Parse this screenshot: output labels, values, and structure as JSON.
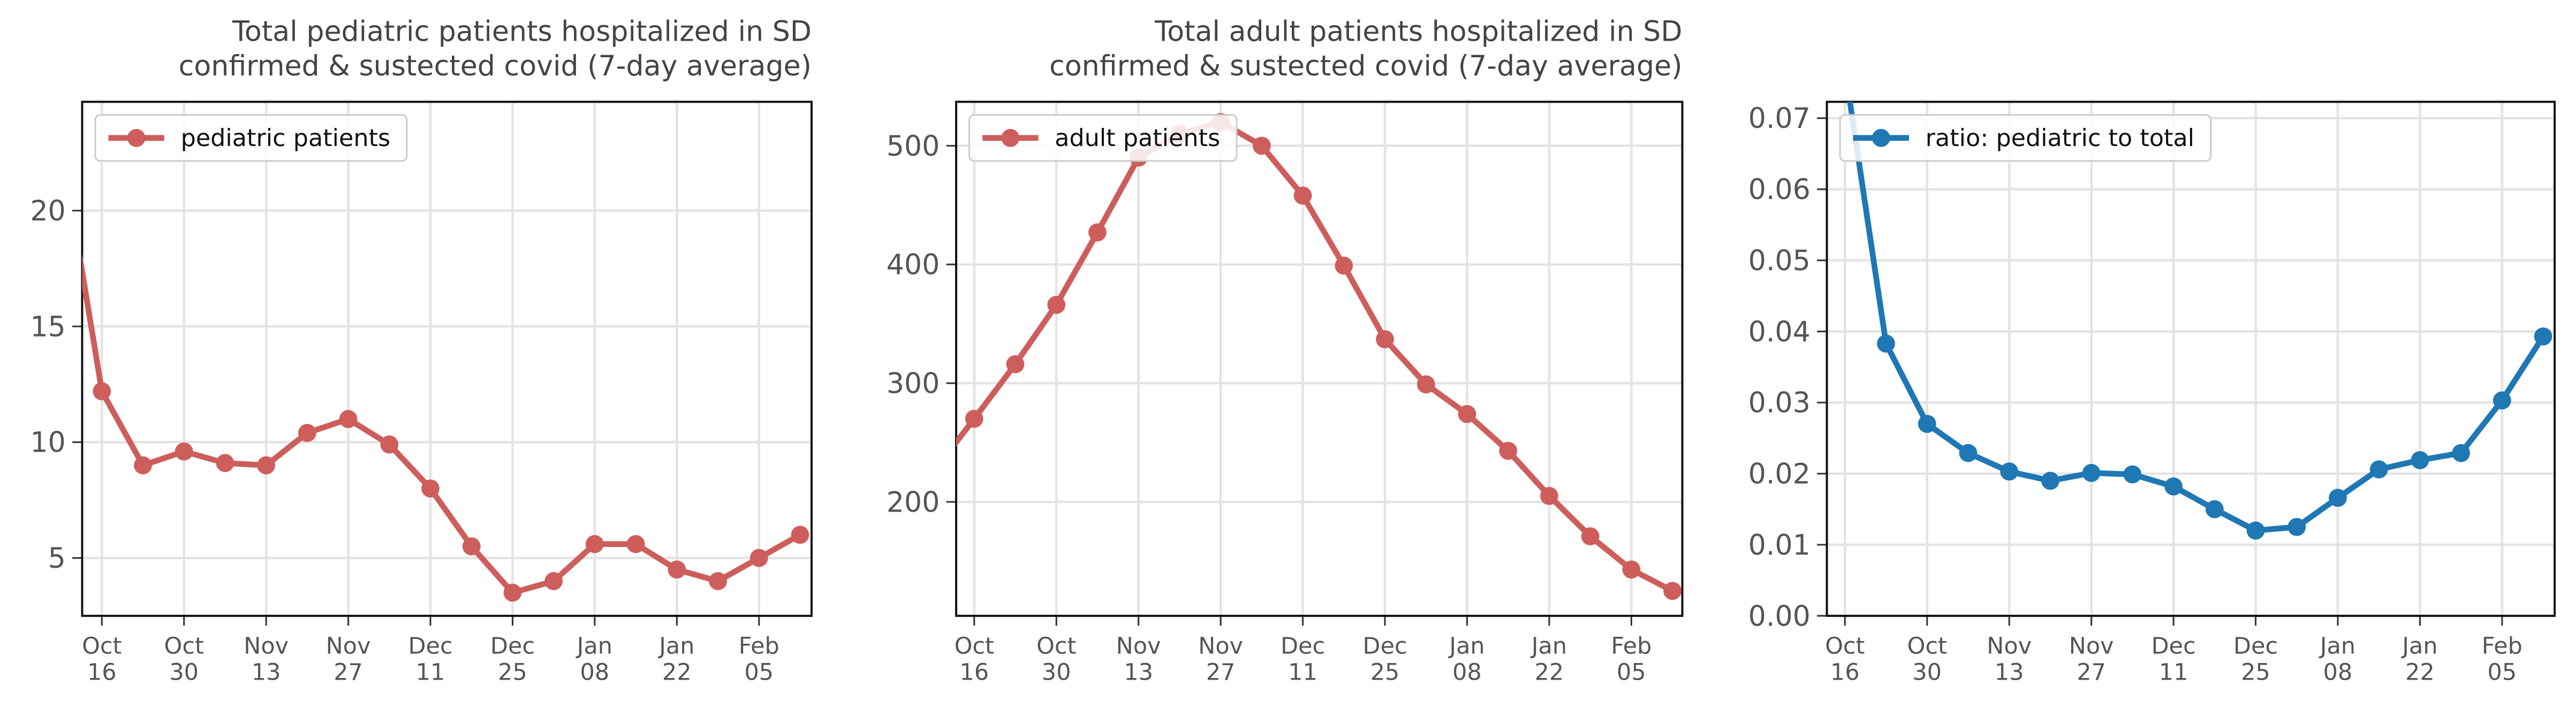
{
  "chart_data": [
    {
      "type": "line",
      "title": "Total pediatric patients hospitalized in SD\nconfirmed & sustected covid (7-day average)",
      "categories": [
        null,
        "Oct 16",
        null,
        "Oct 30",
        null,
        "Nov 13",
        null,
        "Nov 27",
        null,
        "Dec 11",
        null,
        "Dec 25",
        null,
        "Jan 08",
        null,
        "Jan 22",
        null,
        "Feb 05",
        null
      ],
      "series": [
        {
          "name": "pediatric patients",
          "color": "#cd5e5c",
          "values": [
            23,
            12.2,
            9.0,
            9.6,
            9.1,
            9.0,
            10.4,
            11.0,
            9.9,
            8.0,
            5.5,
            3.5,
            4.0,
            5.6,
            5.6,
            4.5,
            4.0,
            5.0,
            6.0
          ]
        }
      ],
      "xlim": [
        0.52,
        18.28
      ],
      "ylim": [
        2.5,
        24.7
      ],
      "yticks": [
        5,
        10,
        15,
        20
      ],
      "grid": true,
      "legend": "upper left"
    },
    {
      "type": "line",
      "title": "Total adult patients hospitalized in SD\nconfirmed & sustected covid (7-day average)",
      "categories": [
        null,
        "Oct 16",
        null,
        "Oct 30",
        null,
        "Nov 13",
        null,
        "Nov 27",
        null,
        "Dec 11",
        null,
        "Dec 25",
        null,
        "Jan 08",
        null,
        "Jan 22",
        null,
        "Feb 05",
        null
      ],
      "series": [
        {
          "name": "adult patients",
          "color": "#cd5e5c",
          "values": [
            225,
            270,
            316,
            366,
            427,
            490,
            510,
            520,
            500,
            458,
            399,
            337,
            299,
            274,
            243,
            205,
            171,
            143,
            125
          ]
        }
      ],
      "xlim": [
        0.56,
        18.24
      ],
      "ylim": [
        104,
        537
      ],
      "yticks": [
        200,
        300,
        400,
        500
      ],
      "grid": true,
      "legend": "upper left"
    },
    {
      "type": "line",
      "categories": [
        null,
        "Oct 16",
        null,
        "Oct 30",
        null,
        "Nov 13",
        null,
        "Nov 27",
        null,
        "Dec 11",
        null,
        "Dec 25",
        null,
        "Jan 08",
        null,
        "Jan 22",
        null,
        "Feb 05",
        null
      ],
      "series": [
        {
          "name": "ratio: pediatric to total",
          "color": "#1f77b4",
          "values": [
            0.09,
            0.077,
            0.0383,
            0.027,
            0.0229,
            0.0203,
            0.019,
            0.0201,
            0.0199,
            0.0182,
            0.015,
            0.012,
            0.0125,
            0.0166,
            0.0206,
            0.0219,
            0.0229,
            0.0303,
            0.0393
          ]
        }
      ],
      "xlim": [
        0.56,
        18.28
      ],
      "ylim": [
        0,
        0.0723
      ],
      "yticks": [
        {
          "value": 0,
          "label": "0.00"
        },
        {
          "value": 0.01,
          "label": "0.01"
        },
        {
          "value": 0.02,
          "label": "0.02"
        },
        {
          "value": 0.03,
          "label": "0.03"
        },
        {
          "value": 0.04,
          "label": "0.04"
        },
        {
          "value": 0.05,
          "label": "0.05"
        },
        {
          "value": 0.06,
          "label": "0.06"
        },
        {
          "value": 0.07,
          "label": "0.07"
        }
      ],
      "grid": true,
      "legend": "upper left"
    }
  ]
}
